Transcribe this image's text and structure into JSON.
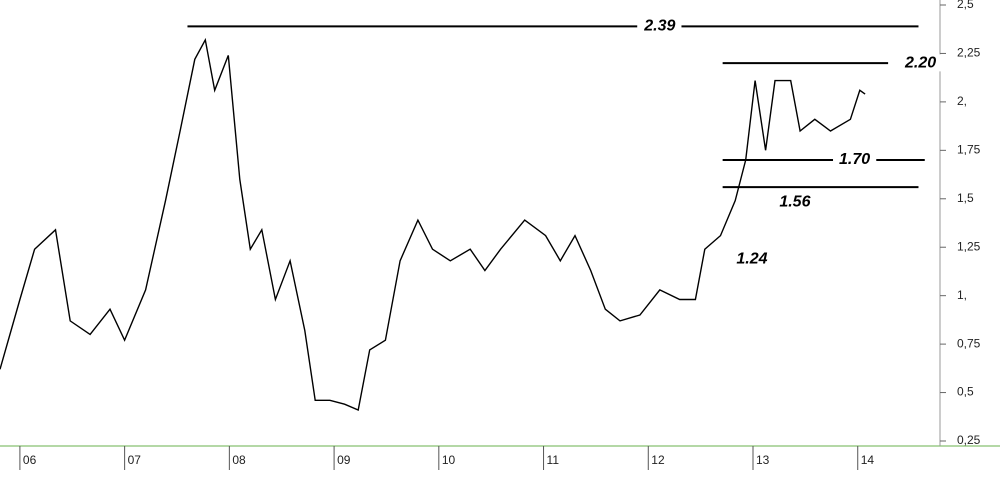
{
  "chart_data": {
    "type": "line",
    "x": [
      5.81,
      6.0,
      6.14,
      6.34,
      6.48,
      6.67,
      6.86,
      7.0,
      7.2,
      7.39,
      7.53,
      7.67,
      7.77,
      7.86,
      7.99,
      8.1,
      8.2,
      8.31,
      8.44,
      8.58,
      8.72,
      8.82,
      8.96,
      9.1,
      9.23,
      9.34,
      9.49,
      9.63,
      9.8,
      9.94,
      10.11,
      10.3,
      10.44,
      10.59,
      10.82,
      11.02,
      11.16,
      11.3,
      11.45,
      11.59,
      11.73,
      11.92,
      12.11,
      12.3,
      12.45,
      12.54,
      12.69,
      12.83,
      12.93,
      13.02,
      13.12,
      13.21,
      13.36,
      13.45,
      13.59,
      13.74,
      13.93,
      14.02,
      14.07
    ],
    "series": [
      {
        "color": "#000000",
        "values": [
          0.62,
          0.98,
          1.24,
          1.34,
          0.87,
          0.8,
          0.93,
          0.77,
          1.03,
          1.49,
          1.85,
          2.22,
          2.32,
          2.06,
          2.24,
          1.6,
          1.24,
          1.34,
          0.98,
          1.18,
          0.82,
          0.46,
          0.46,
          0.44,
          0.41,
          0.72,
          0.77,
          1.18,
          1.39,
          1.24,
          1.18,
          1.24,
          1.13,
          1.24,
          1.39,
          1.31,
          1.18,
          1.31,
          1.13,
          0.93,
          0.87,
          0.9,
          1.03,
          0.98,
          0.98,
          1.24,
          1.31,
          1.49,
          1.7,
          2.11,
          1.75,
          2.11,
          2.11,
          1.85,
          1.91,
          1.85,
          1.91,
          2.06,
          2.04
        ]
      }
    ],
    "xlim": [
      5.81,
      14.69
    ],
    "xticks": [
      {
        "value": 6,
        "label": "06"
      },
      {
        "value": 7,
        "label": "07"
      },
      {
        "value": 8,
        "label": "08"
      },
      {
        "value": 9,
        "label": "09"
      },
      {
        "value": 10,
        "label": "10"
      },
      {
        "value": 11,
        "label": "11"
      },
      {
        "value": 12,
        "label": "12"
      },
      {
        "value": 13,
        "label": "13"
      },
      {
        "value": 14,
        "label": "14"
      }
    ],
    "ylim": [
      0.25,
      2.5
    ],
    "yticks": [
      {
        "value": 0.25,
        "label": "0,25"
      },
      {
        "value": 0.5,
        "label": "0,5"
      },
      {
        "value": 0.75,
        "label": "0,75"
      },
      {
        "value": 1,
        "label": "1,"
      },
      {
        "value": 1.25,
        "label": "1,25"
      },
      {
        "value": 1.5,
        "label": "1,5"
      },
      {
        "value": 1.75,
        "label": "1,75"
      },
      {
        "value": 2,
        "label": "2,"
      },
      {
        "value": 2.25,
        "label": "2,25"
      },
      {
        "value": 2.5,
        "label": "2,5"
      }
    ],
    "levels": [
      {
        "value": 2.39,
        "label": "2.39",
        "x_range": [
          7.6,
          14.58
        ],
        "label_x": 12.11
      },
      {
        "value": 2.2,
        "label": "2.20",
        "x_range": [
          12.71,
          14.29
        ],
        "label_x": 14.6
      },
      {
        "value": 1.7,
        "label": "1.70",
        "x_range": [
          12.71,
          14.64
        ],
        "label_x": 13.97
      },
      {
        "value": 1.56,
        "label": "1.56",
        "x_range": [
          12.71,
          14.58
        ],
        "label_x": 13.4
      },
      {
        "value": 1.24,
        "label": "1.24",
        "label_x": 12.99
      }
    ]
  }
}
